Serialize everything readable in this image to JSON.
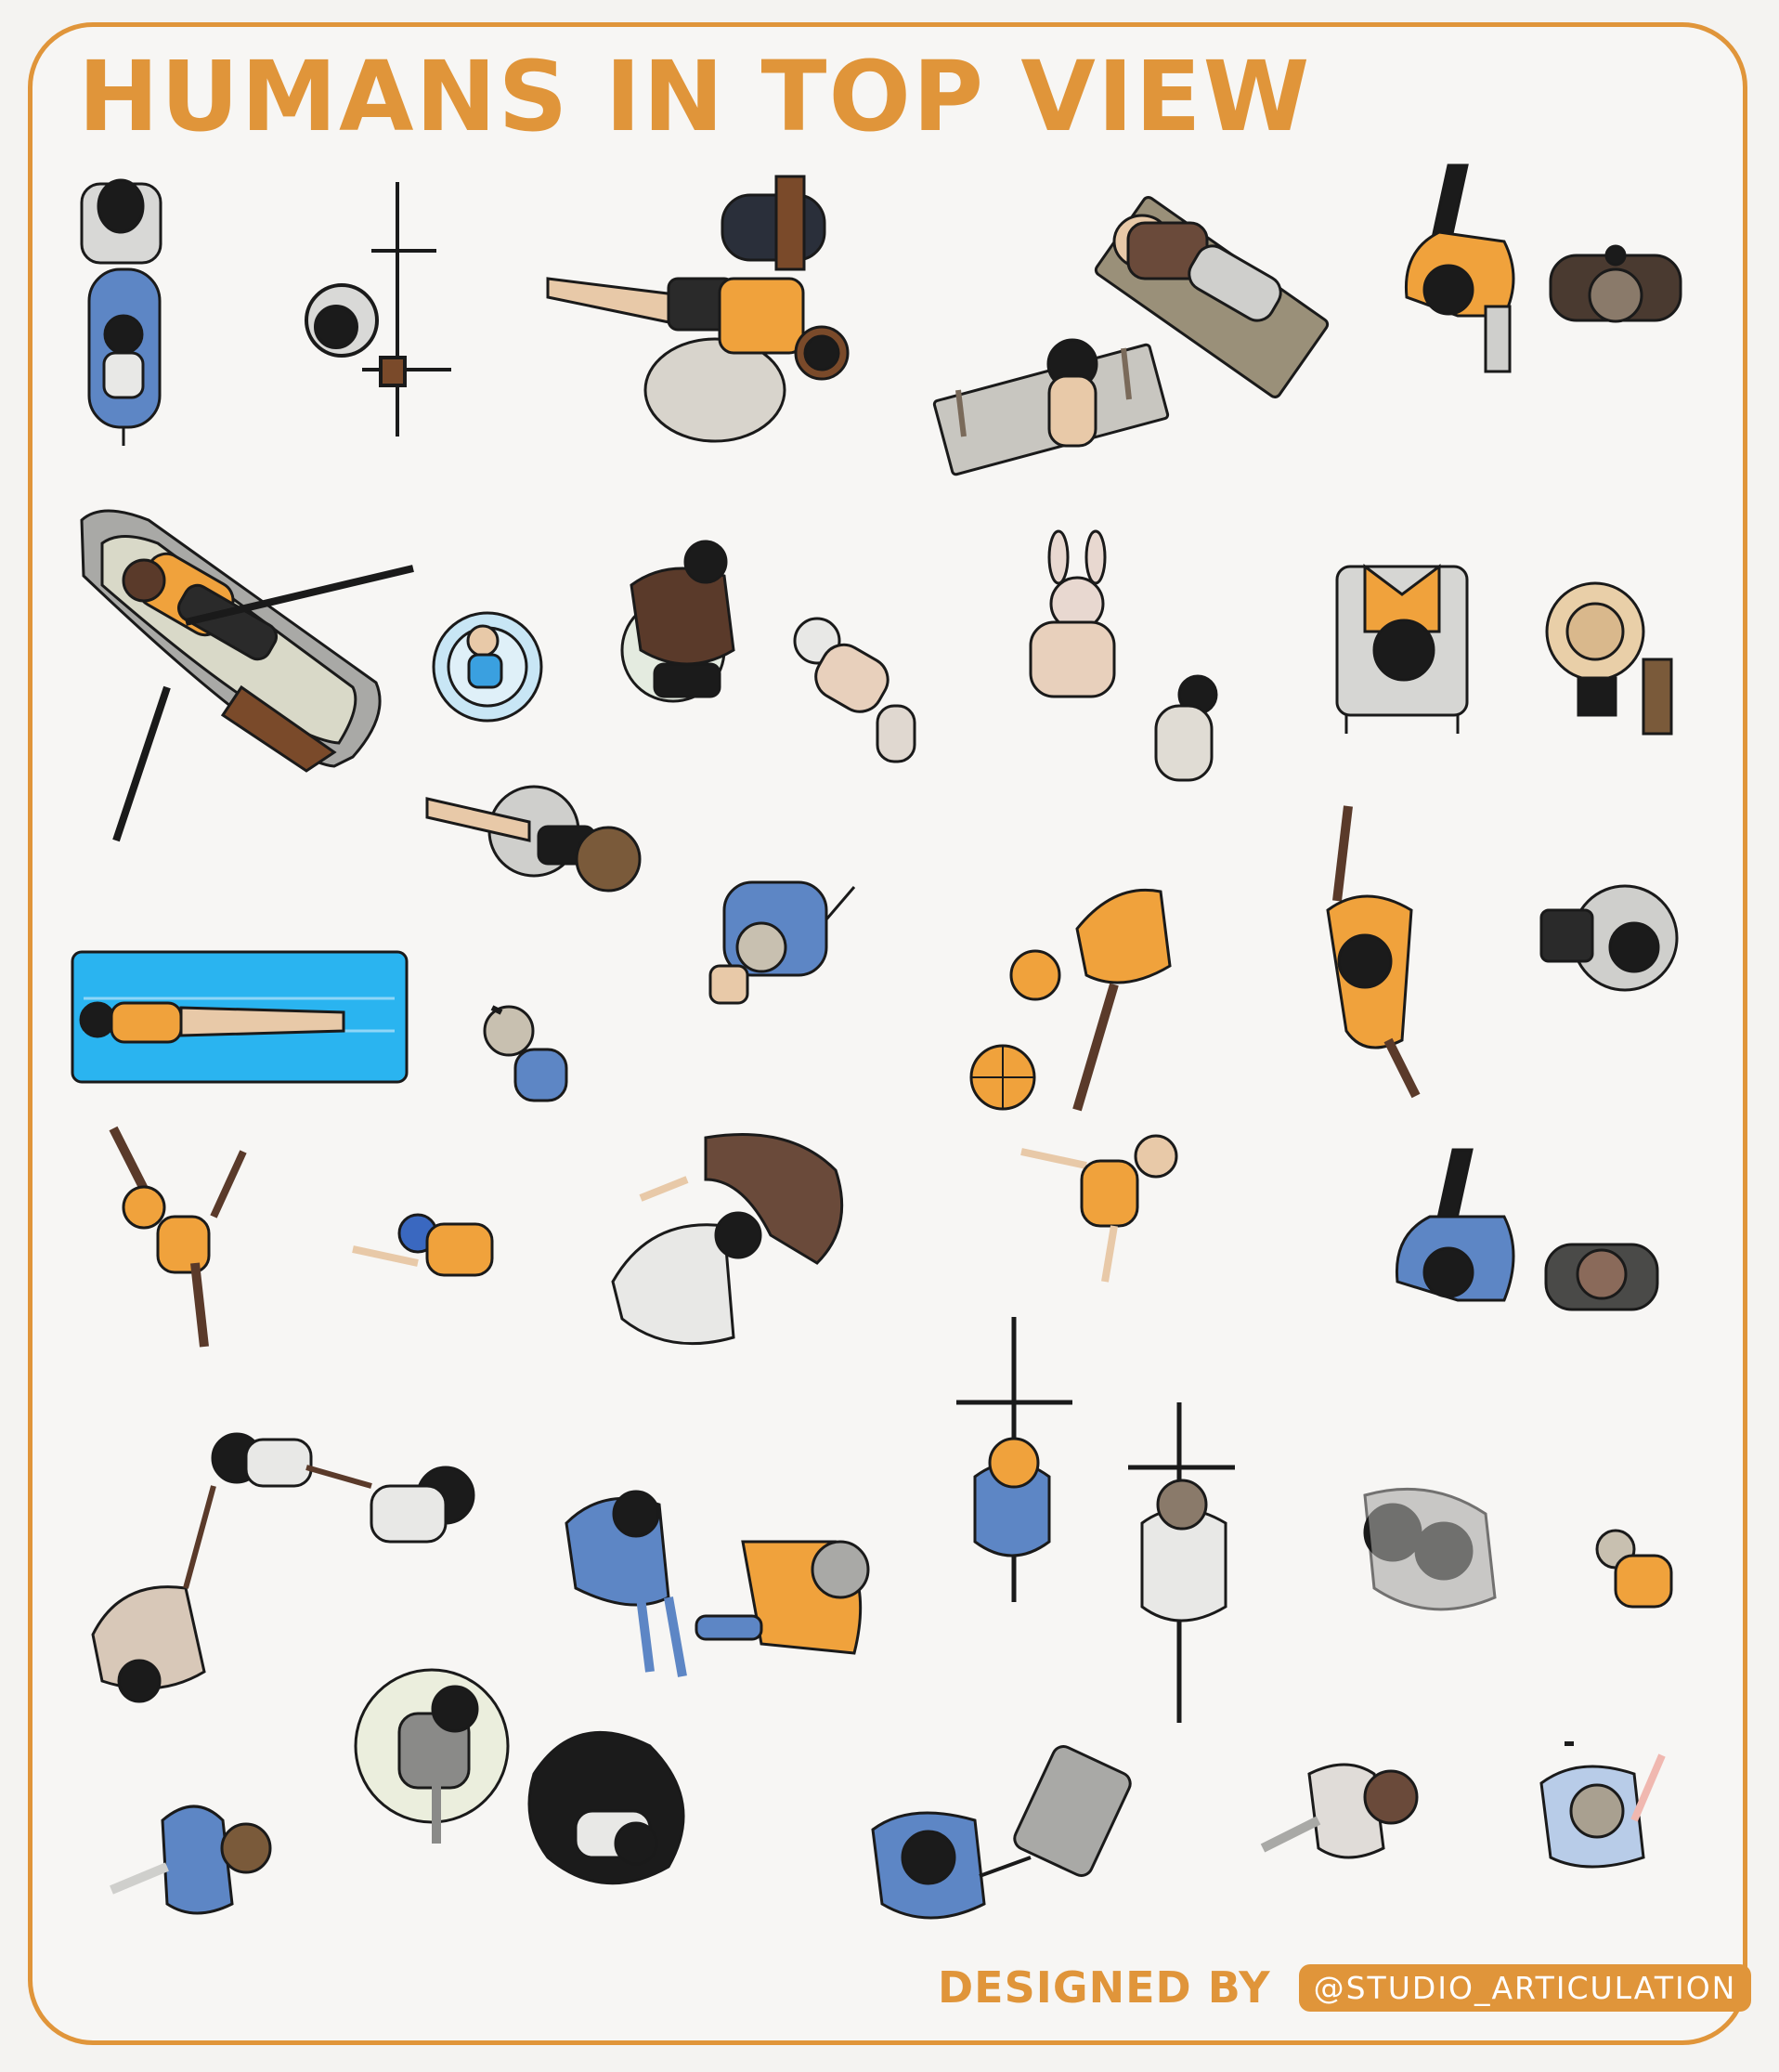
{
  "title": "HUMANS IN TOP VIEW",
  "credit": {
    "label": "DESIGNED BY",
    "handle": "@STUDIO_ARTICULATION"
  },
  "colors": {
    "accent": "#e0953a",
    "outline": "#1a1a1a",
    "orange": "#f0a23c",
    "blue": "#5d86c5",
    "grey": "#cfcfcc",
    "dark_skin": "#5a3a2a",
    "light_skin": "#e8c9a8",
    "pool_blue": "#2ab4f0"
  },
  "figures": [
    "stroller-with-parent",
    "bicycle-rider",
    "person-lying-with-dog",
    "person-on-beach-towel",
    "person-lying-on-mat",
    "walking-pair-orange",
    "rowing-boat-with-couple",
    "baby-in-ring",
    "man-on-float",
    "crawling-baby",
    "baby-in-bunny-hat",
    "sleeping-baby",
    "person-in-chair",
    "person-with-sunhat",
    "woman-on-pool-ring",
    "man-pointing",
    "basketball-player",
    "waving-woman",
    "person-with-laptop",
    "person-on-pool-mat",
    "sitting-child",
    "dancing-woman",
    "child-reaching",
    "man-with-dog",
    "jumping-child",
    "walking-pair-blue",
    "holding-hands-group",
    "person-on-phone",
    "person-lying-grey-hair",
    "cyclist-orange-hair",
    "cyclist-white-shirt",
    "hugging-couple",
    "child-sitting",
    "person-on-cushion",
    "person-in-beanbag",
    "walking-man-blue",
    "person-with-suitcase",
    "walking-man-grey",
    "woman-walking-pink"
  ]
}
